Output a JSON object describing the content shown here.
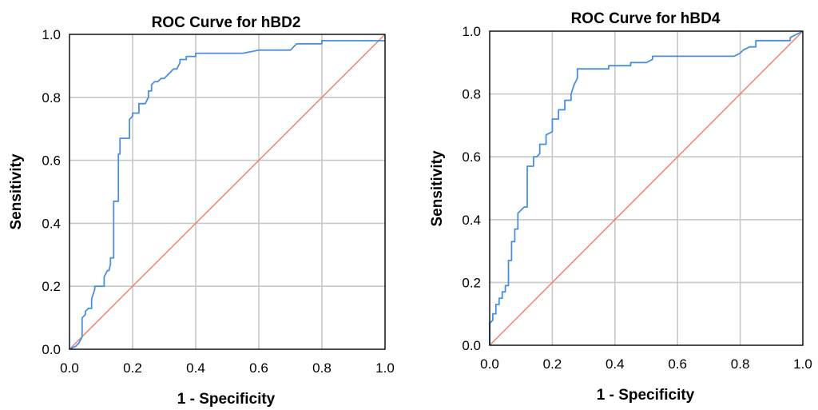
{
  "chart_data": [
    {
      "type": "line",
      "title": "ROC Curve for hBD2",
      "xlabel": "1 - Specificity",
      "ylabel": "Sensitivity",
      "xlim": [
        0,
        1
      ],
      "ylim": [
        0,
        1
      ],
      "xticks": [
        "0.0",
        "0.2",
        "0.4",
        "0.6",
        "0.8",
        "1.0"
      ],
      "yticks": [
        "0.0",
        "0.2",
        "0.4",
        "0.6",
        "0.8",
        "1.0"
      ],
      "grid": true,
      "colors": {
        "roc": "#4a8fe0",
        "reference": "#f07a72"
      },
      "series": [
        {
          "x": [
            0,
            0.02,
            0.03,
            0.035,
            0.04,
            0.04,
            0.05,
            0.05,
            0.06,
            0.07,
            0.07,
            0.08,
            0.08,
            0.11,
            0.11,
            0.12,
            0.125,
            0.13,
            0.13,
            0.14,
            0.14,
            0.155,
            0.155,
            0.16,
            0.16,
            0.19,
            0.19,
            0.2,
            0.2,
            0.22,
            0.22,
            0.24,
            0.245,
            0.25,
            0.25,
            0.26,
            0.26,
            0.27,
            0.28,
            0.29,
            0.3,
            0.31,
            0.32,
            0.33,
            0.34,
            0.35,
            0.35,
            0.37,
            0.37,
            0.4,
            0.4,
            0.55,
            0.6,
            0.7,
            0.72,
            0.8,
            0.8,
            0.96,
            1.0
          ],
          "y": [
            0,
            0.01,
            0.02,
            0.03,
            0.04,
            0.1,
            0.11,
            0.12,
            0.13,
            0.13,
            0.16,
            0.19,
            0.2,
            0.2,
            0.23,
            0.25,
            0.25,
            0.27,
            0.29,
            0.29,
            0.47,
            0.47,
            0.62,
            0.62,
            0.67,
            0.67,
            0.73,
            0.74,
            0.75,
            0.75,
            0.78,
            0.78,
            0.79,
            0.8,
            0.82,
            0.82,
            0.84,
            0.85,
            0.85,
            0.86,
            0.86,
            0.87,
            0.88,
            0.89,
            0.89,
            0.91,
            0.92,
            0.92,
            0.93,
            0.93,
            0.94,
            0.94,
            0.95,
            0.95,
            0.97,
            0.97,
            0.98,
            0.98,
            0.98
          ]
        },
        {
          "x": [
            0,
            1
          ],
          "y": [
            0,
            1
          ]
        }
      ]
    },
    {
      "type": "line",
      "title": "ROC Curve for hBD4",
      "xlabel": "1 - Specificity",
      "ylabel": "Sensitivity",
      "xlim": [
        0,
        1
      ],
      "ylim": [
        0,
        1
      ],
      "xticks": [
        "0.0",
        "0.2",
        "0.4",
        "0.6",
        "0.8",
        "1.0"
      ],
      "yticks": [
        "0.0",
        "0.2",
        "0.4",
        "0.6",
        "0.8",
        "1.0"
      ],
      "grid": true,
      "colors": {
        "roc": "#4a8fe0",
        "reference": "#f07a72"
      },
      "series": [
        {
          "x": [
            0,
            0,
            0.01,
            0.01,
            0.02,
            0.02,
            0.03,
            0.03,
            0.04,
            0.04,
            0.05,
            0.05,
            0.06,
            0.06,
            0.07,
            0.07,
            0.08,
            0.08,
            0.09,
            0.09,
            0.1,
            0.11,
            0.12,
            0.12,
            0.14,
            0.14,
            0.15,
            0.16,
            0.16,
            0.18,
            0.18,
            0.2,
            0.2,
            0.22,
            0.22,
            0.24,
            0.24,
            0.26,
            0.26,
            0.27,
            0.28,
            0.28,
            0.38,
            0.38,
            0.45,
            0.45,
            0.5,
            0.52,
            0.52,
            0.78,
            0.8,
            0.81,
            0.83,
            0.85,
            0.85,
            0.96,
            0.96,
            0.98,
            1.0
          ],
          "y": [
            0,
            0.07,
            0.08,
            0.1,
            0.1,
            0.13,
            0.13,
            0.15,
            0.15,
            0.17,
            0.17,
            0.19,
            0.19,
            0.27,
            0.27,
            0.33,
            0.33,
            0.37,
            0.37,
            0.42,
            0.43,
            0.44,
            0.44,
            0.57,
            0.57,
            0.6,
            0.6,
            0.61,
            0.64,
            0.64,
            0.67,
            0.68,
            0.72,
            0.72,
            0.75,
            0.75,
            0.78,
            0.78,
            0.8,
            0.83,
            0.85,
            0.88,
            0.88,
            0.89,
            0.89,
            0.9,
            0.9,
            0.91,
            0.92,
            0.92,
            0.93,
            0.94,
            0.95,
            0.95,
            0.97,
            0.97,
            0.98,
            0.99,
            1.0
          ]
        },
        {
          "x": [
            0,
            1
          ],
          "y": [
            0,
            1
          ]
        }
      ]
    }
  ]
}
